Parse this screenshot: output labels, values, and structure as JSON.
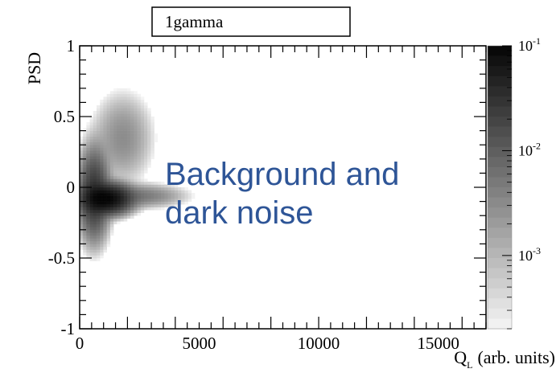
{
  "chart_data": {
    "type": "heatmap",
    "title": "1gamma",
    "xlabel": "Q",
    "xlabel_subscript": "L",
    "xlabel_units": "(arb. units)",
    "ylabel": "PSD",
    "xlim": [
      0,
      17000
    ],
    "ylim": [
      -1,
      1
    ],
    "x_ticks": [
      {
        "value": 0,
        "label": "0"
      },
      {
        "value": 5000,
        "label": "5000"
      },
      {
        "value": 10000,
        "label": "10000"
      },
      {
        "value": 15000,
        "label": "15000"
      }
    ],
    "y_ticks": [
      {
        "value": -1,
        "label": "-1"
      },
      {
        "value": -0.5,
        "label": "-0.5"
      },
      {
        "value": 0,
        "label": "0"
      },
      {
        "value": 0.5,
        "label": "0.5"
      },
      {
        "value": 1,
        "label": "1"
      }
    ],
    "colorbar": {
      "scale": "log",
      "range": [
        0.0002,
        0.1
      ],
      "tick_labels": [
        {
          "value": 0.1,
          "base": "10",
          "exponent": "-1"
        },
        {
          "value": 0.01,
          "base": "10",
          "exponent": "-2"
        },
        {
          "value": 0.001,
          "base": "10",
          "exponent": "-3"
        }
      ]
    },
    "density_regions": [
      {
        "x_center": 1100,
        "y_center": -0.08,
        "x_spread": 500,
        "y_spread": 0.05,
        "peak": 0.1
      },
      {
        "x_center": 600,
        "y_center": -0.05,
        "x_spread": 300,
        "y_spread": 0.15,
        "peak": 0.03
      },
      {
        "x_center": 2500,
        "y_center": -0.06,
        "x_spread": 900,
        "y_spread": 0.04,
        "peak": 0.005
      },
      {
        "x_center": 1800,
        "y_center": 0.35,
        "x_spread": 600,
        "y_spread": 0.15,
        "peak": 0.003
      }
    ],
    "annotations": [
      {
        "text_lines": [
          "Background and",
          "dark noise"
        ],
        "color": "#2e5597"
      }
    ]
  }
}
